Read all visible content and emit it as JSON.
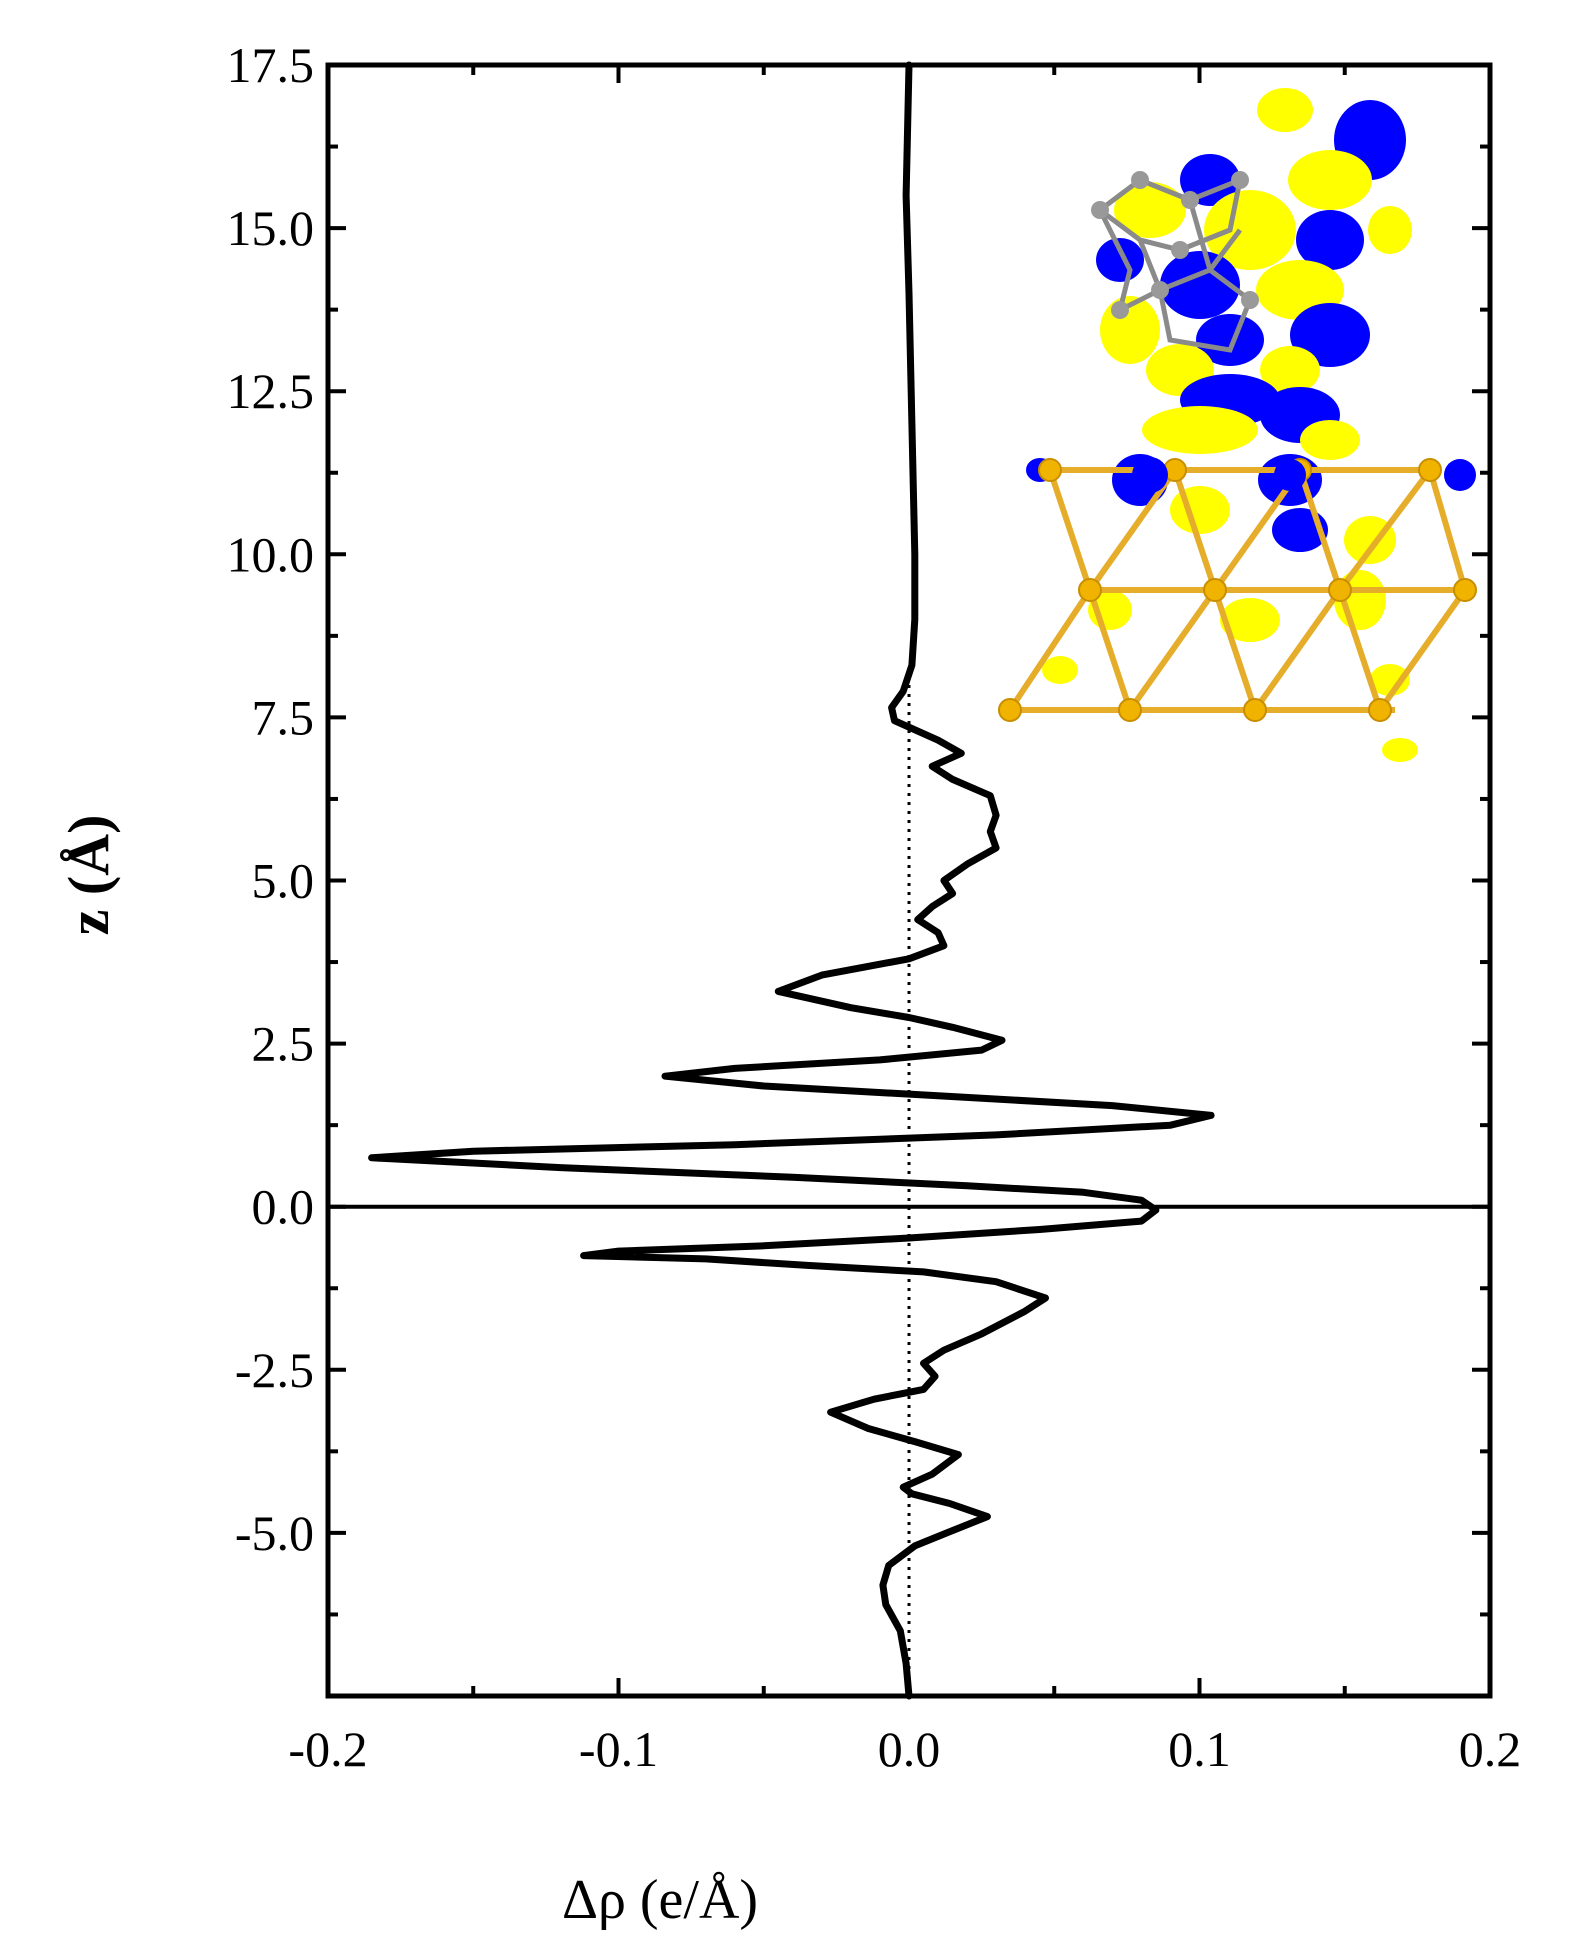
{
  "chart_data": {
    "type": "line",
    "xlabel": "Δρ (e/Å)",
    "ylabel": "z (Å)",
    "xlim": [
      -0.2,
      0.2
    ],
    "ylim": [
      -7.5,
      17.5
    ],
    "xticks": [
      -0.2,
      -0.1,
      0.0,
      0.1,
      0.2
    ],
    "xtick_labels": [
      "-0.2",
      "-0.1",
      "0.0",
      "0.1",
      "0.2"
    ],
    "yticks": [
      -5.0,
      -2.5,
      0.0,
      2.5,
      5.0,
      7.5,
      10.0,
      12.5,
      15.0,
      17.5
    ],
    "ytick_labels": [
      "-5.0",
      "-2.5",
      "0.0",
      "2.5",
      "5.0",
      "7.5",
      "10.0",
      "12.5",
      "15.0",
      "17.5"
    ],
    "reference_lines": [
      {
        "orientation": "horizontal",
        "at": 0.0,
        "style": "solid"
      },
      {
        "orientation": "vertical",
        "at": 0.0,
        "style": "dotted",
        "range": [
          -7.5,
          8.0
        ]
      }
    ],
    "series": [
      {
        "color": "#000000",
        "points": [
          [
            0.0,
            -7.5
          ],
          [
            -0.001,
            -7.0
          ],
          [
            -0.003,
            -6.5
          ],
          [
            -0.008,
            -6.1
          ],
          [
            -0.009,
            -5.8
          ],
          [
            -0.007,
            -5.5
          ],
          [
            0.002,
            -5.2
          ],
          [
            0.013,
            -5.0
          ],
          [
            0.027,
            -4.75
          ],
          [
            0.014,
            -4.55
          ],
          [
            0.001,
            -4.4
          ],
          [
            -0.002,
            -4.3
          ],
          [
            0.008,
            -4.1
          ],
          [
            0.017,
            -3.8
          ],
          [
            0.002,
            -3.6
          ],
          [
            -0.014,
            -3.4
          ],
          [
            -0.027,
            -3.15
          ],
          [
            -0.012,
            -2.95
          ],
          [
            0.005,
            -2.8
          ],
          [
            0.009,
            -2.6
          ],
          [
            0.005,
            -2.4
          ],
          [
            0.012,
            -2.2
          ],
          [
            0.025,
            -1.95
          ],
          [
            0.04,
            -1.6
          ],
          [
            0.047,
            -1.4
          ],
          [
            0.03,
            -1.15
          ],
          [
            0.005,
            -1.0
          ],
          [
            -0.035,
            -0.9
          ],
          [
            -0.07,
            -0.8
          ],
          [
            -0.112,
            -0.75
          ],
          [
            -0.1,
            -0.68
          ],
          [
            -0.05,
            -0.6
          ],
          [
            0.0,
            -0.48
          ],
          [
            0.045,
            -0.35
          ],
          [
            0.08,
            -0.22
          ],
          [
            0.085,
            -0.05
          ],
          [
            0.08,
            0.1
          ],
          [
            0.06,
            0.22
          ],
          [
            0.02,
            0.32
          ],
          [
            -0.04,
            0.45
          ],
          [
            -0.12,
            0.6
          ],
          [
            -0.185,
            0.75
          ],
          [
            -0.15,
            0.85
          ],
          [
            -0.06,
            0.95
          ],
          [
            0.03,
            1.1
          ],
          [
            0.09,
            1.25
          ],
          [
            0.104,
            1.4
          ],
          [
            0.07,
            1.55
          ],
          [
            0.01,
            1.7
          ],
          [
            -0.05,
            1.85
          ],
          [
            -0.084,
            2.0
          ],
          [
            -0.06,
            2.12
          ],
          [
            -0.01,
            2.25
          ],
          [
            0.025,
            2.4
          ],
          [
            0.032,
            2.55
          ],
          [
            0.015,
            2.75
          ],
          [
            0.0,
            2.9
          ],
          [
            -0.02,
            3.05
          ],
          [
            -0.045,
            3.3
          ],
          [
            -0.03,
            3.55
          ],
          [
            0.0,
            3.8
          ],
          [
            0.012,
            4.0
          ],
          [
            0.01,
            4.2
          ],
          [
            0.003,
            4.4
          ],
          [
            0.008,
            4.6
          ],
          [
            0.015,
            4.8
          ],
          [
            0.012,
            5.0
          ],
          [
            0.02,
            5.25
          ],
          [
            0.03,
            5.5
          ],
          [
            0.028,
            5.75
          ],
          [
            0.03,
            6.0
          ],
          [
            0.028,
            6.3
          ],
          [
            0.015,
            6.55
          ],
          [
            0.008,
            6.75
          ],
          [
            0.018,
            6.95
          ],
          [
            0.01,
            7.15
          ],
          [
            -0.005,
            7.45
          ],
          [
            -0.006,
            7.65
          ],
          [
            -0.002,
            7.9
          ],
          [
            0.001,
            8.3
          ],
          [
            0.002,
            9.0
          ],
          [
            0.002,
            10.0
          ],
          [
            0.001,
            12.0
          ],
          [
            0.0,
            14.0
          ],
          [
            -0.001,
            15.5
          ],
          [
            0.0,
            17.5
          ]
        ]
      }
    ],
    "inset": {
      "kind": "charge-density isosurface image",
      "colors": {
        "positive": "#ffff00",
        "negative": "#0000ff",
        "substrate": "#e5ad2a",
        "cluster": "#888888"
      }
    }
  }
}
